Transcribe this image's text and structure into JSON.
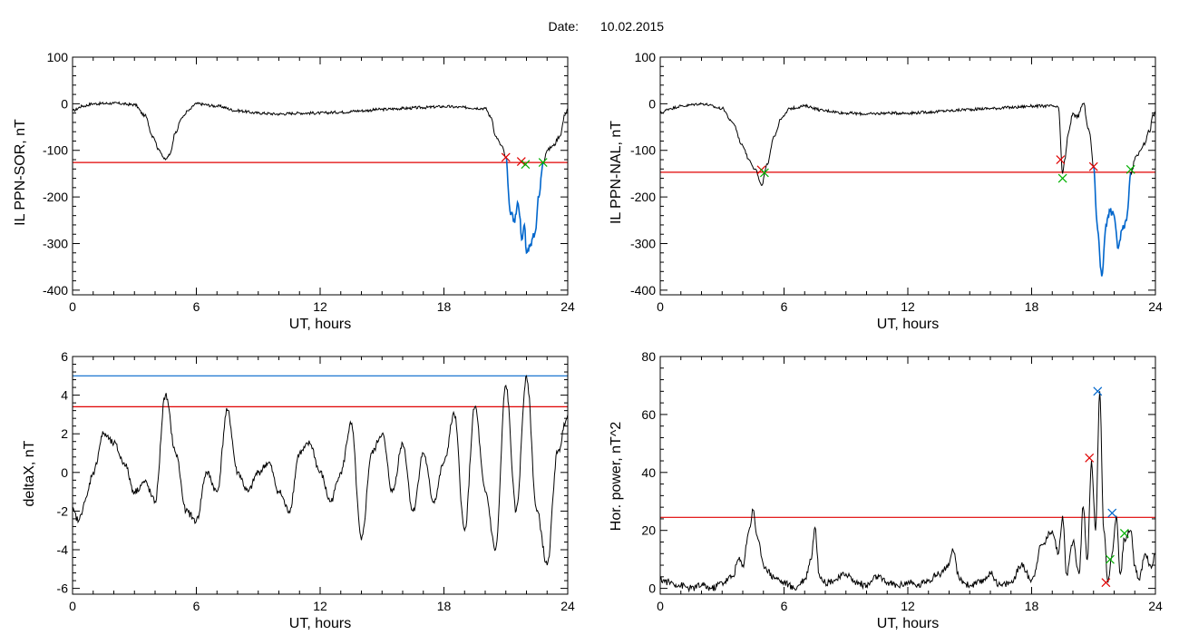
{
  "header": {
    "date_label": "Date:",
    "date_value": "10.02.2015"
  },
  "colors": {
    "trace": "#000000",
    "threshold": "#e00000",
    "secondary": "#0066cc",
    "marker_green": "#00b000"
  },
  "chart_data": [
    {
      "id": "sor",
      "type": "line",
      "xlabel": "UT, hours",
      "ylabel": "IL PPN-SOR, nT",
      "xlim": [
        0,
        24
      ],
      "ylim": [
        -410,
        100
      ],
      "xticks": [
        0,
        6,
        12,
        18,
        24
      ],
      "yticks": [
        -400,
        -300,
        -200,
        -100,
        0,
        100
      ],
      "thresholds": [
        {
          "y": -126,
          "color": "#e00000"
        }
      ],
      "series": [
        {
          "color": "#000000",
          "noise": 3,
          "x": [
            0,
            0.5,
            1,
            2,
            3,
            3.5,
            3.9,
            4.2,
            4.5,
            4.7,
            5.0,
            5.3,
            5.6,
            6,
            7,
            8,
            9,
            10,
            11,
            12,
            13,
            14,
            15,
            16,
            17,
            18,
            19,
            20,
            20.3,
            20.5,
            20.8,
            21.0
          ],
          "y": [
            -15,
            -5,
            0,
            1,
            -2,
            -25,
            -70,
            -100,
            -120,
            -110,
            -60,
            -30,
            -15,
            0,
            -5,
            -15,
            -20,
            -22,
            -20,
            -20,
            -18,
            -15,
            -12,
            -10,
            -8,
            -6,
            -8,
            -10,
            -30,
            -70,
            -90,
            -115
          ]
        },
        {
          "color": "#0066cc",
          "noise": 8,
          "x": [
            21.0,
            21.2,
            21.4,
            21.6,
            21.8,
            21.9,
            22.0,
            22.2,
            22.4,
            22.6,
            22.8
          ],
          "y": [
            -115,
            -230,
            -250,
            -215,
            -290,
            -260,
            -320,
            -300,
            -280,
            -200,
            -126
          ]
        },
        {
          "color": "#000000",
          "noise": 4,
          "x": [
            22.8,
            23.0,
            23.3,
            23.6,
            23.9,
            24
          ],
          "y": [
            -126,
            -100,
            -90,
            -70,
            -20,
            -10
          ]
        }
      ],
      "markers": [
        {
          "x": 21.0,
          "y": -115,
          "color": "#e00000"
        },
        {
          "x": 21.75,
          "y": -124,
          "color": "#e00000"
        },
        {
          "x": 21.95,
          "y": -130,
          "color": "#00b000"
        },
        {
          "x": 22.8,
          "y": -126,
          "color": "#00b000"
        }
      ]
    },
    {
      "id": "nal",
      "type": "line",
      "xlabel": "UT, hours",
      "ylabel": "IL PPN-NAL, nT",
      "xlim": [
        0,
        24
      ],
      "ylim": [
        -410,
        100
      ],
      "xticks": [
        0,
        6,
        12,
        18,
        24
      ],
      "yticks": [
        -400,
        -300,
        -200,
        -100,
        0,
        100
      ],
      "thresholds": [
        {
          "y": -147,
          "color": "#e00000"
        }
      ],
      "series": [
        {
          "color": "#000000",
          "noise": 3,
          "x": [
            0,
            0.5,
            1,
            2,
            3,
            3.5,
            4.0,
            4.3,
            4.6,
            4.9,
            5.2,
            5.5,
            5.9,
            6.3,
            7,
            8,
            9,
            10,
            11,
            12,
            13,
            14,
            15,
            16,
            17,
            18,
            19,
            19.3
          ],
          "y": [
            -20,
            -10,
            -5,
            0,
            -10,
            -40,
            -90,
            -120,
            -140,
            -175,
            -130,
            -70,
            -30,
            -10,
            -5,
            -15,
            -20,
            -22,
            -20,
            -20,
            -18,
            -15,
            -12,
            -10,
            -8,
            -5,
            -5,
            -8
          ]
        },
        {
          "color": "#000000",
          "noise": 5,
          "x": [
            19.3,
            19.5,
            19.6,
            19.8,
            20.0,
            20.2,
            20.5,
            20.8,
            21.0
          ],
          "y": [
            -8,
            -150,
            -120,
            -60,
            -20,
            -30,
            0,
            -60,
            -135
          ]
        },
        {
          "color": "#0066cc",
          "noise": 8,
          "x": [
            21.0,
            21.2,
            21.4,
            21.6,
            21.8,
            22.0,
            22.2,
            22.4,
            22.6,
            22.8
          ],
          "y": [
            -135,
            -270,
            -370,
            -260,
            -230,
            -240,
            -310,
            -270,
            -250,
            -147
          ]
        },
        {
          "color": "#000000",
          "noise": 5,
          "x": [
            22.8,
            23.1,
            23.4,
            23.7,
            23.9,
            24
          ],
          "y": [
            -147,
            -110,
            -90,
            -60,
            -25,
            -20
          ]
        }
      ],
      "markers": [
        {
          "x": 4.9,
          "y": -142,
          "color": "#e00000"
        },
        {
          "x": 5.05,
          "y": -148,
          "color": "#00b000"
        },
        {
          "x": 19.4,
          "y": -120,
          "color": "#e00000"
        },
        {
          "x": 19.5,
          "y": -160,
          "color": "#00b000"
        },
        {
          "x": 21.0,
          "y": -135,
          "color": "#e00000"
        },
        {
          "x": 22.8,
          "y": -141,
          "color": "#00b000"
        }
      ]
    },
    {
      "id": "deltax",
      "type": "line",
      "xlabel": "UT, hours",
      "ylabel": "deltaX, nT",
      "xlim": [
        0,
        24
      ],
      "ylim": [
        -6.3,
        6
      ],
      "xticks": [
        0,
        6,
        12,
        18,
        24
      ],
      "yticks": [
        -6,
        -4,
        -2,
        0,
        2,
        4,
        6
      ],
      "thresholds": [
        {
          "y": 5.0,
          "color": "#0066cc"
        },
        {
          "y": 3.4,
          "color": "#e00000"
        }
      ],
      "series": [
        {
          "color": "#000000",
          "noise": 0.18,
          "x": [
            0,
            0.3,
            0.6,
            1.0,
            1.5,
            2.0,
            2.5,
            3.0,
            3.5,
            4.0,
            4.5,
            5.0,
            5.5,
            6.0,
            6.5,
            7.0,
            7.5,
            8.0,
            8.5,
            9.0,
            9.5,
            10.0,
            10.5,
            11.0,
            11.5,
            12.0,
            12.5,
            13.0,
            13.5,
            14.0,
            14.5,
            15.0,
            15.5,
            16.0,
            16.5,
            17.0,
            17.5,
            18.0,
            18.5,
            19.0,
            19.5,
            20.0,
            20.5,
            21.0,
            21.5,
            22.0,
            22.5,
            23.0,
            23.5,
            24.0
          ],
          "y": [
            -2,
            -2.5,
            -1.5,
            0,
            2,
            1.5,
            0.5,
            -1,
            -0.5,
            -1.5,
            4,
            1,
            -2,
            -2.5,
            0,
            -1,
            3.2,
            0,
            -1,
            0,
            0.5,
            -1,
            -2,
            1,
            1.5,
            0,
            -1.5,
            0,
            2.5,
            -3.5,
            1,
            2,
            -1,
            1.5,
            -2,
            1,
            -1.5,
            0.5,
            3,
            -3,
            3.4,
            -1,
            -4,
            4.5,
            -2,
            5,
            -2,
            -4.8,
            1,
            3
          ]
        }
      ],
      "markers": []
    },
    {
      "id": "power",
      "type": "line",
      "xlabel": "UT, hours",
      "ylabel": "Hor. power, nT^2",
      "xlim": [
        0,
        24
      ],
      "ylim": [
        -2,
        80
      ],
      "xticks": [
        0,
        6,
        12,
        18,
        24
      ],
      "yticks": [
        0,
        20,
        40,
        60,
        80
      ],
      "thresholds": [
        {
          "y": 24.5,
          "color": "#e00000"
        }
      ],
      "series": [
        {
          "color": "#000000",
          "noise": 1.2,
          "x": [
            0,
            0.5,
            1.0,
            1.5,
            2.0,
            2.5,
            3.0,
            3.5,
            3.8,
            4.0,
            4.3,
            4.5,
            4.7,
            5.0,
            5.5,
            6.0,
            6.5,
            7.0,
            7.3,
            7.5,
            7.7,
            8.0,
            8.5,
            9.0,
            9.5,
            10.0,
            10.5,
            11.0,
            11.5,
            12.0,
            12.5,
            13.0,
            13.5,
            14.0,
            14.2,
            14.5,
            15.0,
            15.5,
            16.0,
            16.5,
            17.0,
            17.5,
            18.0,
            18.5,
            19.0,
            19.3,
            19.5,
            19.7,
            20.0,
            20.3,
            20.5,
            20.7,
            20.9,
            21.1,
            21.3,
            21.5,
            21.7,
            21.9,
            22.1,
            22.3,
            22.5,
            22.8,
            23.0,
            23.2,
            23.5,
            23.8,
            24.0
          ],
          "y": [
            3,
            2,
            1,
            0,
            1,
            0,
            2,
            4,
            10,
            8,
            20,
            27,
            18,
            8,
            4,
            2,
            0,
            3,
            10,
            21,
            5,
            2,
            3,
            5,
            2,
            1,
            4,
            2,
            1,
            2,
            1,
            3,
            5,
            8,
            13,
            3,
            1,
            2,
            5,
            1,
            2,
            8,
            3,
            15,
            20,
            12,
            25,
            5,
            16,
            5,
            28,
            10,
            44,
            20,
            68,
            20,
            2,
            12,
            25,
            5,
            17,
            20,
            8,
            3,
            12,
            7,
            12
          ]
        }
      ],
      "markers": [
        {
          "x": 20.8,
          "y": 45,
          "color": "#e00000"
        },
        {
          "x": 21.2,
          "y": 68,
          "color": "#0066cc"
        },
        {
          "x": 21.6,
          "y": 2,
          "color": "#e00000"
        },
        {
          "x": 21.8,
          "y": 10,
          "color": "#00b000"
        },
        {
          "x": 21.9,
          "y": 26,
          "color": "#0066cc"
        },
        {
          "x": 22.5,
          "y": 19,
          "color": "#00b000"
        }
      ]
    }
  ]
}
